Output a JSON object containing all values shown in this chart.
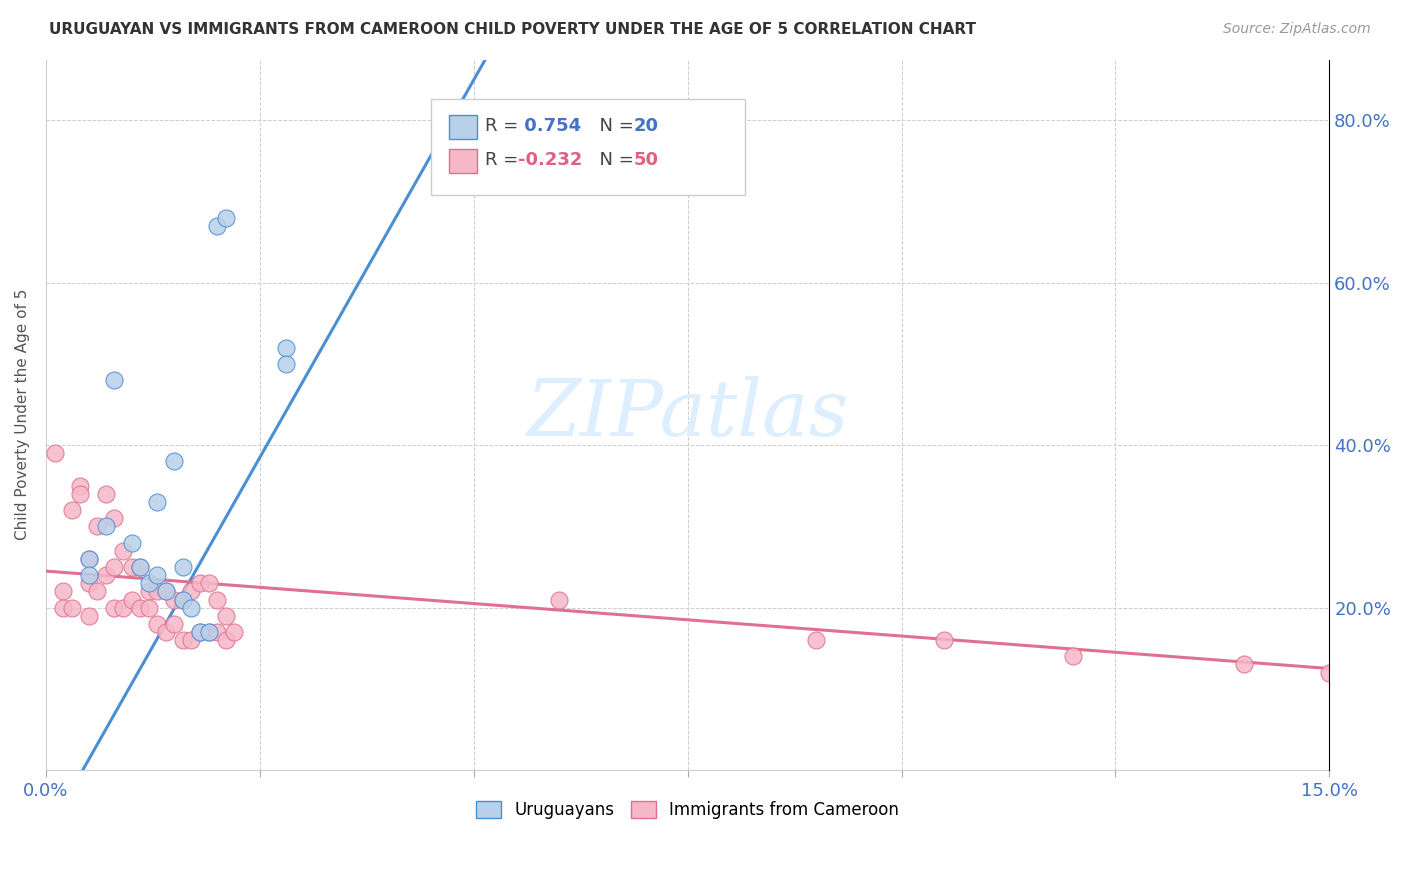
{
  "title": "URUGUAYAN VS IMMIGRANTS FROM CAMEROON CHILD POVERTY UNDER THE AGE OF 5 CORRELATION CHART",
  "source": "Source: ZipAtlas.com",
  "ylabel": "Child Poverty Under the Age of 5",
  "uruguayan_color": "#b8d0e8",
  "cameroon_color": "#f5b8c8",
  "line_blue": "#4a8fd4",
  "line_pink": "#e07090",
  "watermark_color": "#ddeeff",
  "uruguayan_x": [
    0.005,
    0.005,
    0.007,
    0.008,
    0.01,
    0.011,
    0.012,
    0.013,
    0.013,
    0.014,
    0.015,
    0.016,
    0.016,
    0.017,
    0.018,
    0.019,
    0.02,
    0.021,
    0.028,
    0.028
  ],
  "uruguayan_y": [
    0.26,
    0.24,
    0.3,
    0.48,
    0.28,
    0.25,
    0.23,
    0.24,
    0.33,
    0.22,
    0.38,
    0.25,
    0.21,
    0.2,
    0.17,
    0.17,
    0.67,
    0.68,
    0.52,
    0.5
  ],
  "cameroon_x": [
    0.001,
    0.002,
    0.002,
    0.003,
    0.003,
    0.004,
    0.004,
    0.005,
    0.005,
    0.005,
    0.006,
    0.006,
    0.007,
    0.007,
    0.008,
    0.008,
    0.008,
    0.009,
    0.009,
    0.01,
    0.01,
    0.011,
    0.011,
    0.012,
    0.012,
    0.013,
    0.013,
    0.014,
    0.014,
    0.015,
    0.015,
    0.016,
    0.016,
    0.017,
    0.017,
    0.018,
    0.018,
    0.019,
    0.019,
    0.02,
    0.02,
    0.021,
    0.021,
    0.022,
    0.06,
    0.09,
    0.105,
    0.12,
    0.14,
    0.15
  ],
  "cameroon_y": [
    0.39,
    0.22,
    0.2,
    0.32,
    0.2,
    0.35,
    0.34,
    0.26,
    0.23,
    0.19,
    0.3,
    0.22,
    0.34,
    0.24,
    0.31,
    0.25,
    0.2,
    0.27,
    0.2,
    0.25,
    0.21,
    0.25,
    0.2,
    0.22,
    0.2,
    0.22,
    0.18,
    0.22,
    0.17,
    0.21,
    0.18,
    0.21,
    0.16,
    0.22,
    0.16,
    0.23,
    0.17,
    0.23,
    0.17,
    0.21,
    0.17,
    0.19,
    0.16,
    0.17,
    0.21,
    0.16,
    0.16,
    0.14,
    0.13,
    0.12
  ],
  "xmin": 0.0,
  "xmax": 0.15,
  "ymin": 0.0,
  "ymax": 0.875,
  "ytick_vals": [
    0.2,
    0.4,
    0.6,
    0.8
  ],
  "ytick_labels": [
    "20.0%",
    "40.0%",
    "60.0%",
    "80.0%"
  ],
  "xtick_left_label": "0.0%",
  "xtick_right_label": "15.0%",
  "legend_R_blue": "0.754",
  "legend_N_blue": "20",
  "legend_R_pink": "-0.232",
  "legend_N_pink": "50"
}
